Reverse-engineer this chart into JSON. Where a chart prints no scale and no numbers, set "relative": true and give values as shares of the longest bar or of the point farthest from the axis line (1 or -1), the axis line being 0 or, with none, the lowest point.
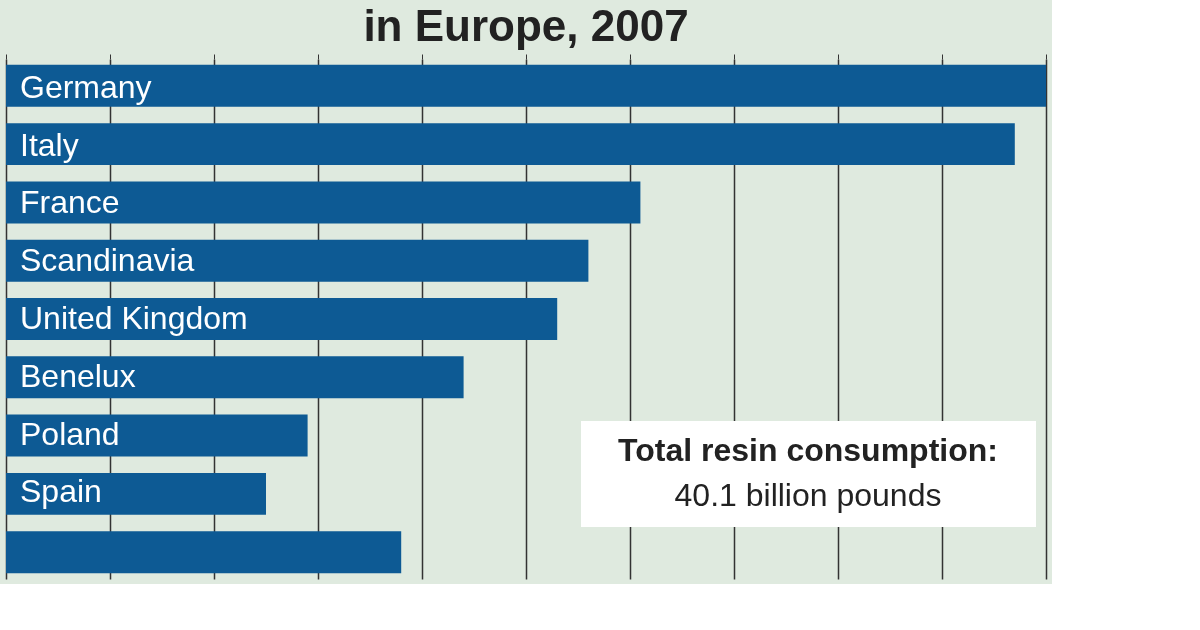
{
  "chart_data": {
    "type": "bar",
    "orientation": "horizontal",
    "relative": true,
    "title": "in Europe, 2007",
    "categories": [
      "Germany",
      "Italy",
      "France",
      "Scandinavia",
      "United Kingdom",
      "Benelux",
      "Poland",
      "Spain",
      null
    ],
    "values": [
      1,
      0.97,
      0.61,
      0.56,
      0.53,
      0.44,
      0.29,
      0.25,
      0.38
    ],
    "color": "#0d5a94",
    "grid": "x",
    "annotations": [
      "Total resin consumption:",
      "40.1 billion pounds"
    ]
  }
}
